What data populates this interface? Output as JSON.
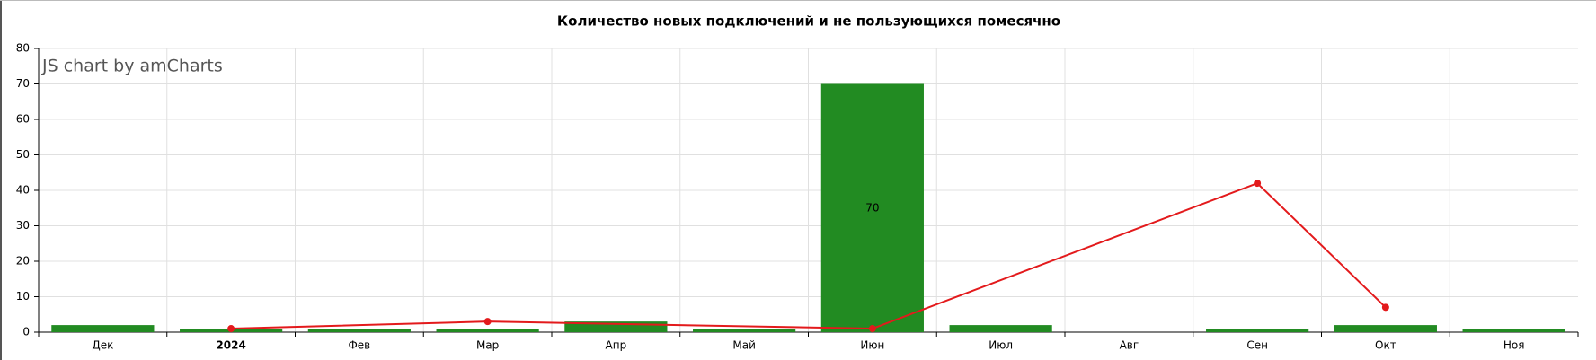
{
  "chart_data": {
    "type": "bar-line",
    "title": "Количество новых подключений и не пользующихся помесячно",
    "watermark": "JS chart by amCharts",
    "categories": [
      "Дек",
      "2024",
      "Фев",
      "Мар",
      "Апр",
      "Май",
      "Июн",
      "Июл",
      "Авг",
      "Сен",
      "Окт",
      "Ноя"
    ],
    "bold_categories": [
      "2024"
    ],
    "series": [
      {
        "type": "bar",
        "color": "#228b22",
        "values": [
          2,
          1,
          1,
          1,
          3,
          1,
          70,
          2,
          null,
          1,
          2,
          1
        ]
      },
      {
        "type": "line",
        "color": "#e31a1c",
        "connect_gaps": true,
        "values": [
          null,
          1,
          null,
          3,
          null,
          null,
          1,
          null,
          null,
          42,
          7,
          null
        ]
      }
    ],
    "ylim": [
      0,
      80
    ],
    "yticks": [
      0,
      10,
      20,
      30,
      40,
      50,
      60,
      70,
      80
    ],
    "grid": true
  }
}
